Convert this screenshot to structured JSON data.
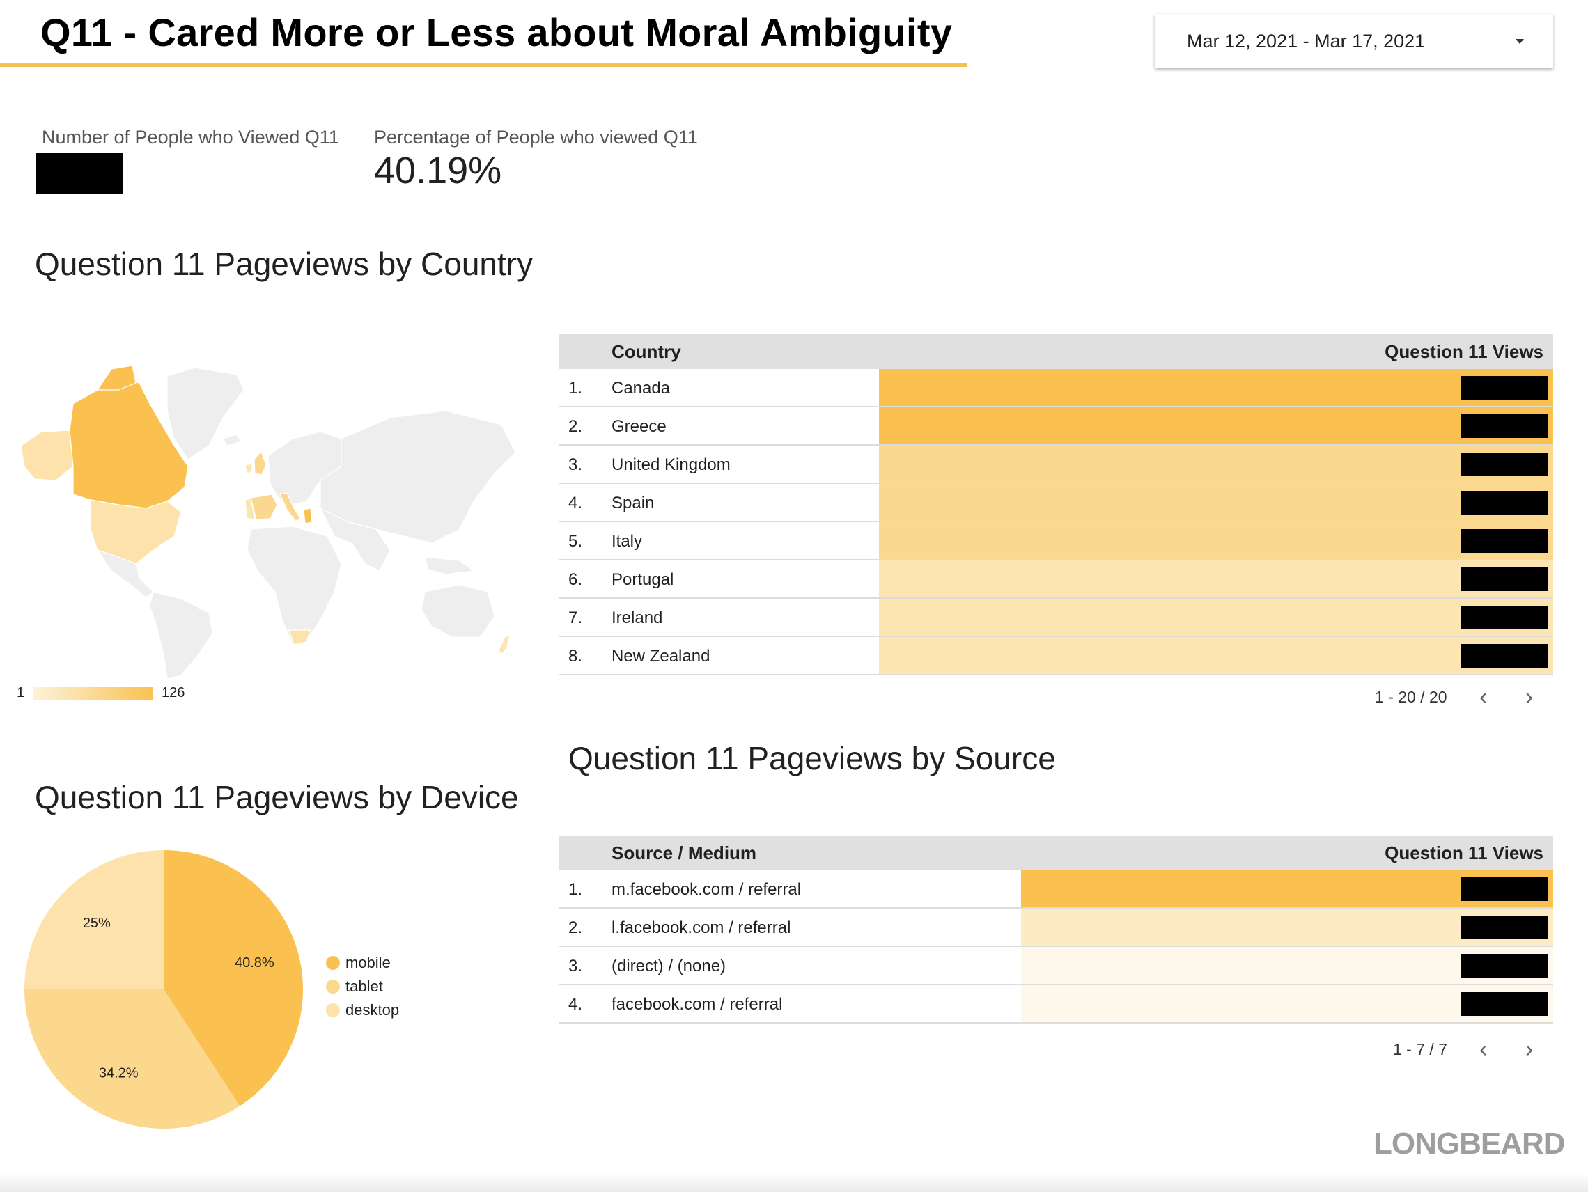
{
  "header": {
    "title": "Q11 - Cared More or Less about Moral Ambiguity",
    "date_range": "Mar 12, 2021 - Mar 17, 2021"
  },
  "scorecards": [
    {
      "label": "Number of People who Viewed Q11",
      "value": null,
      "redacted": true
    },
    {
      "label": "Percentage of People who viewed Q11",
      "value": "40.19%"
    }
  ],
  "map_section": {
    "title": "Question 11 Pageviews by Country",
    "legend_min": "1",
    "legend_max": "126"
  },
  "country_table": {
    "col_name": "Country",
    "col_value": "Question 11 Views",
    "rows": [
      {
        "index": "1.",
        "name": "Canada",
        "bar_color": "#fac150"
      },
      {
        "index": "2.",
        "name": "Greece",
        "bar_color": "#fac150"
      },
      {
        "index": "3.",
        "name": "United Kingdom",
        "bar_color": "#fbd88f"
      },
      {
        "index": "4.",
        "name": "Spain",
        "bar_color": "#fbd88f"
      },
      {
        "index": "5.",
        "name": "Italy",
        "bar_color": "#fbd88f"
      },
      {
        "index": "6.",
        "name": "Portugal",
        "bar_color": "#fce5b3"
      },
      {
        "index": "7.",
        "name": "Ireland",
        "bar_color": "#fce5b3"
      },
      {
        "index": "8.",
        "name": "New Zealand",
        "bar_color": "#fce5b3"
      }
    ],
    "pagination": "1 - 20 / 20"
  },
  "source_section": {
    "title": "Question 11 Pageviews by Source"
  },
  "source_table": {
    "col_name": "Source / Medium",
    "col_value": "Question 11 Views",
    "rows": [
      {
        "index": "1.",
        "name": "m.facebook.com / referral",
        "bar_color": "#fac150"
      },
      {
        "index": "2.",
        "name": "l.facebook.com / referral",
        "bar_color": "#fdebc6"
      },
      {
        "index": "3.",
        "name": "(direct) / (none)",
        "bar_color": "#fef8ec"
      },
      {
        "index": "4.",
        "name": "facebook.com / referral",
        "bar_color": "#fef8ec"
      }
    ],
    "pagination": "1 - 7 / 7"
  },
  "device_section": {
    "title": "Question 11 Pageviews by Device"
  },
  "chart_data": {
    "type": "pie",
    "categories": [
      "mobile",
      "tablet",
      "desktop"
    ],
    "values": [
      40.8,
      34.2,
      25
    ],
    "labels": [
      "40.8%",
      "34.2%",
      "25%"
    ],
    "colors": [
      "#fac150",
      "#fcd88e",
      "#fde3ab"
    ],
    "legend_position": "right"
  },
  "logo": "LONGBEARD"
}
